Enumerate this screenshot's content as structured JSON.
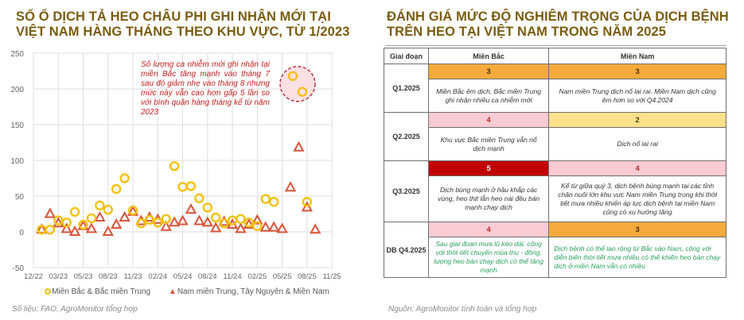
{
  "left_panel": {
    "title_line1": "SỐ Ổ DỊCH TẢ HEO CHÂU PHI GHI NHẬN MỚI TẠI",
    "title_line2": "VIỆT NAM HÀNG THÁNG THEO KHU VỰC, TỪ 1/2023",
    "annotation": "Số lượng ca nhiễm mới ghi nhận tại miền Bắc tăng mạnh vào tháng 7 sau đó giảm nhẹ vào tháng 8 nhưng mức này vẫn cao hơn gấp 5 lần so với bình quân hàng tháng kể từ năm 2023",
    "legend": {
      "series1": "Miền Bắc & Bắc miền Trung",
      "series2": "Nam miền Trung, Tây Nguyên & Miền Nam"
    },
    "source": "Số liệu: FAO, AgroMonitor tổng hợp"
  },
  "chart_data": {
    "type": "scatter",
    "title": "SỐ Ổ DỊCH TẢ HEO CHÂU PHI GHI NHẬN MỚI TẠI VIỆT NAM HÀNG THÁNG THEO KHU VỰC, TỪ 1/2023",
    "xlabel": "",
    "ylabel": "",
    "ylim": [
      -50,
      250
    ],
    "yticks": [
      -50,
      0,
      50,
      100,
      150,
      200,
      250
    ],
    "xticks": [
      "12/22",
      "03/23",
      "05/23",
      "08/23",
      "11/23",
      "02/24",
      "05/24",
      "08/24",
      "11/24",
      "02/25",
      "05/25",
      "08/25",
      "11/25"
    ],
    "grid": true,
    "legend_position": "bottom",
    "x": [
      "01/23",
      "02/23",
      "03/23",
      "04/23",
      "05/23",
      "06/23",
      "07/23",
      "08/23",
      "09/23",
      "10/23",
      "11/23",
      "12/23",
      "01/24",
      "02/24",
      "03/24",
      "04/24",
      "05/24",
      "06/24",
      "07/24",
      "08/24",
      "09/24",
      "10/24",
      "11/24",
      "12/24",
      "01/25",
      "02/25",
      "03/25",
      "04/25",
      "05/25",
      "06/25",
      "07/25",
      "08/25",
      "09/25",
      "10/25"
    ],
    "series": [
      {
        "name": "Miền Bắc & Bắc miền Trung",
        "marker": "circle",
        "color": "#f2c10f",
        "values": [
          3,
          3,
          16,
          13,
          28,
          10,
          19,
          37,
          31,
          60,
          75,
          30,
          12,
          17,
          13,
          18,
          92,
          63,
          64,
          47,
          34,
          20,
          12,
          16,
          18,
          13,
          8,
          46,
          42,
          null,
          218,
          196,
          42,
          null
        ]
      },
      {
        "name": "Nam miền Trung, Tây Nguyên & Miền Nam",
        "marker": "triangle",
        "color": "#d9543a",
        "values": [
          3,
          25,
          12,
          4,
          0,
          8,
          4,
          20,
          0,
          10,
          20,
          28,
          15,
          20,
          17,
          7,
          13,
          15,
          31,
          15,
          13,
          5,
          14,
          10,
          4,
          10,
          16,
          6,
          6,
          4,
          62,
          118,
          34,
          3
        ]
      }
    ],
    "annotation": {
      "text": "Số lượng ca nhiễm mới ghi nhận tại miền Bắc tăng mạnh vào tháng 7 sau đó giảm nhẹ vào tháng 8 nhưng mức này vẫn cao hơn gấp 5 lần so với bình quân hàng tháng kể từ năm 2023",
      "highlight": [
        "07/25",
        "08/25"
      ]
    }
  },
  "right_panel": {
    "title_line1": "ĐÁNH GIÁ MỨC ĐỘ NGHIÊM TRỌNG CỦA DỊCH BỆNH",
    "title_line2": "TRÊN HEO TẠI VIỆT NAM TRONG NĂM 2025",
    "table": {
      "headers": [
        "Giai đoạn",
        "Miền Bắc",
        "Miền Nam"
      ],
      "rows": [
        {
          "period": "Q1.2025",
          "north_score": "3",
          "south_score": "3",
          "north_desc": "Miền Bắc êm dịch, Bắc miền Trung ghi nhận nhiều ca nhiễm mới",
          "south_desc": "Nam miền Trung dịch nổ lai rai. Miền Nam dịch cũng êm hơn so với Q4.2024"
        },
        {
          "period": "Q2.2025",
          "north_score": "4",
          "south_score": "2",
          "north_desc": "Khu vực Bắc miền Trung vẫn nổ dịch mạnh",
          "south_desc": "Dịch nổ lai rai"
        },
        {
          "period": "Q3.2025",
          "north_score": "5",
          "south_score": "4",
          "north_desc": "Dịch bùng mạnh ở hầu khắp các vùng, heo thịt lẫn heo nái đều bán mạnh chạy dịch",
          "south_desc": "Kể từ giữa quý 3, dịch bệnh bùng mạnh tại các tỉnh chăn nuôi lớn khu vực Nam miền Trung trong khi thời tiết mưa nhiều khiến áp lực dịch bệnh tại miền Nam cũng có xu hướng tăng"
        },
        {
          "period": "DB Q4.2025",
          "north_score": "4",
          "south_score": "3",
          "north_desc": "Sau giai đoạn mưa lũ kéo dài,  cộng với thời tiết chuyển mùa thu - đông, lượng heo bán chạy dịch có thể tăng mạnh",
          "south_desc": "Dịch bệnh có thể lan rộng từ Bắc vào Nam, cộng với diễn biến thời tiết mưa nhiều có thể khiến heo bán chạy dịch ở miền Nam vẫn có nhiều"
        }
      ]
    },
    "source": "Nguồn: AgroMonitor tính toán và tổng hợp"
  },
  "colors": {
    "title": "#7a5c0f",
    "series_north": "#f2c10f",
    "series_south": "#d9543a",
    "annotation": "#c81e1e",
    "score_2": "#fde08a",
    "score_3": "#f5ab3c",
    "score_4": "#f9cbd2",
    "score_5": "#c00000",
    "forecast_text": "#28a05a"
  }
}
